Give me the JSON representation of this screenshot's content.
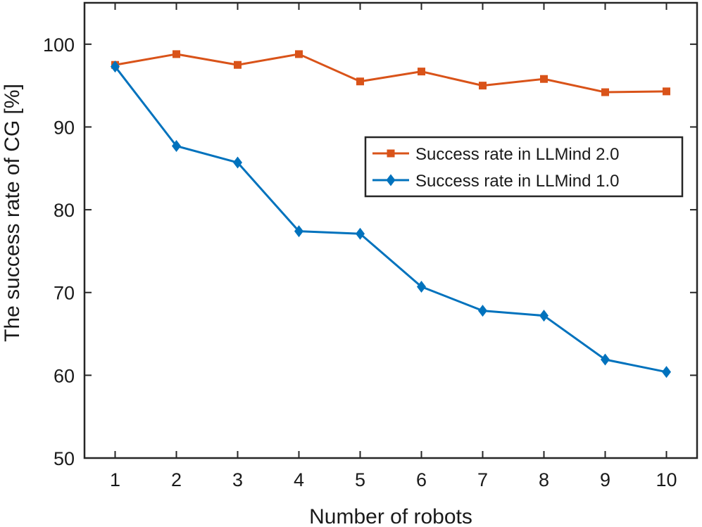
{
  "chart_data": {
    "type": "line",
    "title": "",
    "xlabel": "Number of robots",
    "ylabel": "The success rate of CG [%]",
    "x": [
      1,
      2,
      3,
      4,
      5,
      6,
      7,
      8,
      9,
      10
    ],
    "xlim": [
      0.5,
      10.5
    ],
    "ylim": [
      50,
      105
    ],
    "xticks": [
      1,
      2,
      3,
      4,
      5,
      6,
      7,
      8,
      9,
      10
    ],
    "yticks": [
      50,
      60,
      70,
      80,
      90,
      100
    ],
    "grid": false,
    "legend_position": "upper-right",
    "series": [
      {
        "name": "Success rate in LLMind 2.0",
        "color": "#D95319",
        "marker": "square",
        "values": [
          97.5,
          98.8,
          97.5,
          98.8,
          95.5,
          96.7,
          95.0,
          95.8,
          94.2,
          94.3
        ]
      },
      {
        "name": "Success rate in LLMind 1.0",
        "color": "#0072BD",
        "marker": "diamond",
        "values": [
          97.3,
          87.7,
          85.7,
          77.4,
          77.1,
          70.7,
          67.8,
          67.2,
          61.9,
          60.4
        ]
      }
    ]
  }
}
